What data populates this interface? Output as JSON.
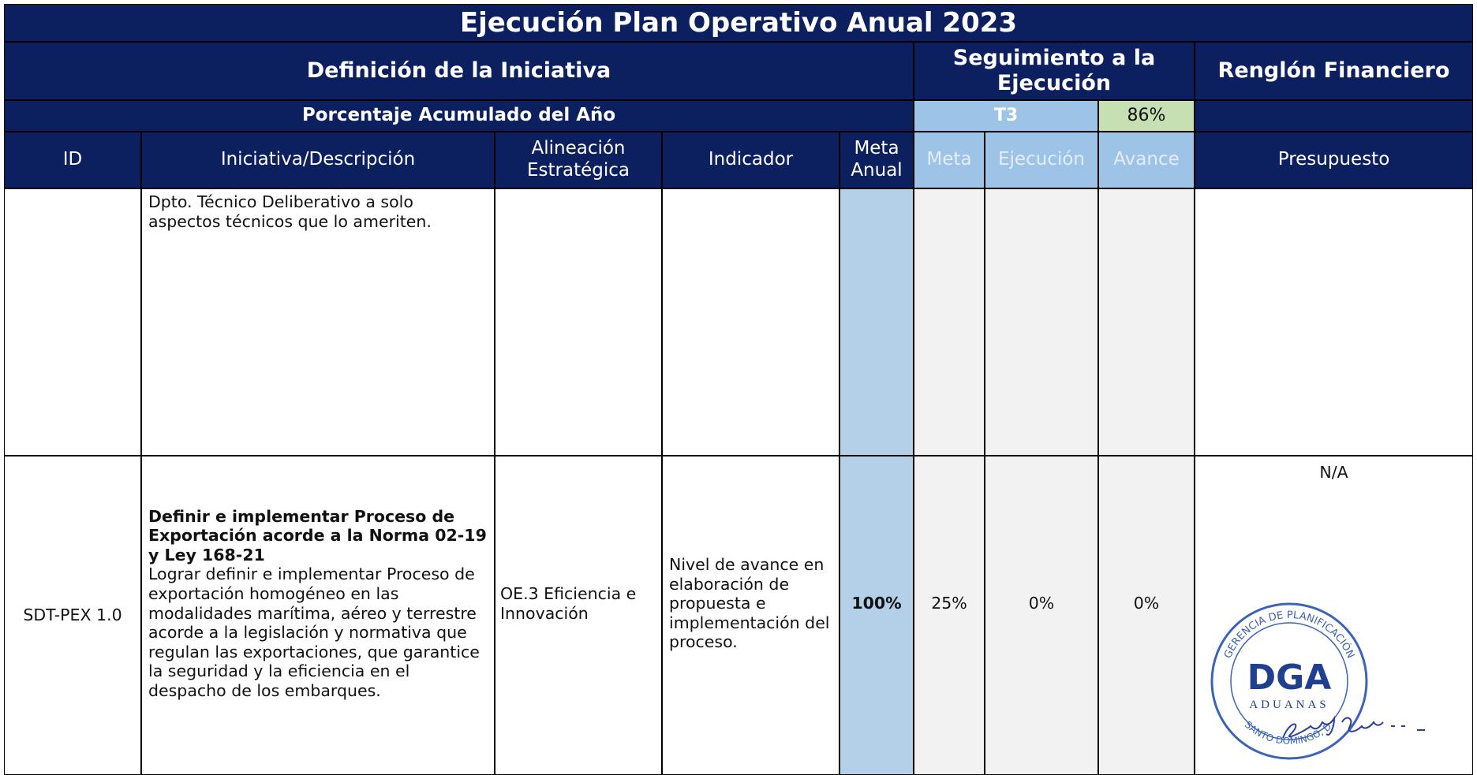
{
  "title": "Ejecución Plan Operativo Anual 2023",
  "group_headers": {
    "definition": "Definición de la Iniciativa",
    "tracking": "Seguimiento a la Ejecución",
    "financial": "Renglón Financiero"
  },
  "summary": {
    "label": "Porcentaje Acumulado del Año",
    "period": "T3",
    "progress": "86%"
  },
  "columns": [
    "ID",
    "Iniciativa/Descripción",
    "Alineación Estratégica",
    "Indicador",
    "Meta Anual",
    "Meta",
    "Ejecución",
    "Avance",
    "Presupuesto"
  ],
  "rows": [
    {
      "description": "Dpto. Técnico Deliberativo a solo aspectos técnicos que lo ameriten."
    },
    {
      "id": "SDT-PEX 1.0",
      "initiative": "Definir e implementar Proceso de Exportación acorde a la Norma 02-19 y Ley 168-21",
      "description": "Lograr definir e implementar Proceso de exportación homogéneo en las modalidades marítima, aéreo y terrestre acorde a la legislación y normativa que regulan las exportaciones, que garantice la seguridad y la eficiencia en el despacho de los embarques.",
      "alignment": "OE.3 Eficiencia e Innovación",
      "indicator": "Nivel de avance en elaboración de propuesta e implementación del proceso.",
      "annual_goal": "100%",
      "goal": "25%",
      "execution": "0%",
      "progress": "0%",
      "budget": "N/A"
    }
  ],
  "stamp": {
    "top": "GERENCIA DE PLANIFICACIÓN",
    "logo": "DGA",
    "name": "ADUANAS",
    "bottom": "SANTO DOMINGO, D."
  }
}
